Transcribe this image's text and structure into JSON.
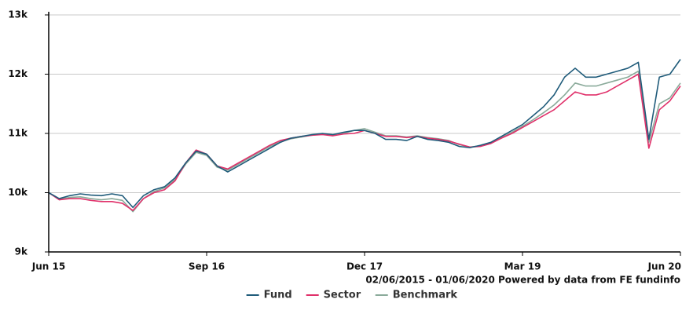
{
  "chart_data": {
    "type": "line",
    "x": [
      "2015-06",
      "2015-07",
      "2015-08",
      "2015-09",
      "2015-10",
      "2015-11",
      "2015-12",
      "2016-01",
      "2016-02",
      "2016-03",
      "2016-04",
      "2016-05",
      "2016-06",
      "2016-07",
      "2016-08",
      "2016-09",
      "2016-10",
      "2016-11",
      "2016-12",
      "2017-01",
      "2017-02",
      "2017-03",
      "2017-04",
      "2017-05",
      "2017-06",
      "2017-07",
      "2017-08",
      "2017-09",
      "2017-10",
      "2017-11",
      "2017-12",
      "2018-01",
      "2018-02",
      "2018-03",
      "2018-04",
      "2018-05",
      "2018-06",
      "2018-07",
      "2018-08",
      "2018-09",
      "2018-10",
      "2018-11",
      "2018-12",
      "2019-01",
      "2019-02",
      "2019-03",
      "2019-04",
      "2019-05",
      "2019-06",
      "2019-07",
      "2019-08",
      "2019-09",
      "2019-10",
      "2019-11",
      "2019-12",
      "2020-01",
      "2020-02",
      "2020-03",
      "2020-04",
      "2020-05",
      "2020-06"
    ],
    "series": [
      {
        "name": "Fund",
        "color": "#1f5b7a",
        "values": [
          10000,
          9900,
          9950,
          9980,
          9960,
          9950,
          9980,
          9950,
          9750,
          9950,
          10050,
          10100,
          10250,
          10500,
          10700,
          10650,
          10450,
          10350,
          10450,
          10550,
          10650,
          10750,
          10850,
          10920,
          10950,
          10980,
          11000,
          10980,
          11020,
          11050,
          11050,
          11000,
          10900,
          10900,
          10880,
          10950,
          10900,
          10880,
          10850,
          10780,
          10760,
          10800,
          10850,
          10950,
          11050,
          11150,
          11300,
          11450,
          11650,
          11950,
          12100,
          11950,
          11950,
          12000,
          12050,
          12100,
          12200,
          10900,
          11950,
          12000,
          12250
        ]
      },
      {
        "name": "Sector",
        "color": "#e0306a",
        "values": [
          10000,
          9880,
          9900,
          9900,
          9870,
          9850,
          9850,
          9820,
          9700,
          9900,
          10000,
          10050,
          10200,
          10500,
          10720,
          10650,
          10450,
          10400,
          10500,
          10600,
          10700,
          10800,
          10880,
          10920,
          10950,
          10970,
          10980,
          10960,
          10990,
          11000,
          11050,
          11000,
          10950,
          10950,
          10930,
          10950,
          10920,
          10900,
          10870,
          10820,
          10770,
          10780,
          10830,
          10920,
          11000,
          11100,
          11200,
          11300,
          11400,
          11550,
          11700,
          11650,
          11650,
          11700,
          11800,
          11900,
          12000,
          10750,
          11400,
          11550,
          11800
        ]
      },
      {
        "name": "Benchmark",
        "color": "#8aaa9a",
        "values": [
          10000,
          9890,
          9920,
          9930,
          9900,
          9880,
          9900,
          9870,
          9680,
          9900,
          10020,
          10080,
          10220,
          10480,
          10680,
          10630,
          10430,
          10380,
          10480,
          10580,
          10680,
          10780,
          10860,
          10910,
          10940,
          10970,
          10990,
          10970,
          11000,
          11050,
          11080,
          11020,
          10960,
          10960,
          10940,
          10960,
          10930,
          10910,
          10880,
          10810,
          10770,
          10790,
          10840,
          10930,
          11020,
          11120,
          11230,
          11350,
          11480,
          11650,
          11850,
          11800,
          11800,
          11850,
          11900,
          11950,
          12050,
          10850,
          11500,
          11600,
          11850
        ]
      }
    ],
    "xlim": [
      "2015-06",
      "2020-06"
    ],
    "xticks": [
      {
        "value": "2015-06",
        "label": "Jun 15"
      },
      {
        "value": "2016-09",
        "label": "Sep 16"
      },
      {
        "value": "2017-12",
        "label": "Dec 17"
      },
      {
        "value": "2019-03",
        "label": "Mar 19"
      },
      {
        "value": "2020-06",
        "label": "Jun 20"
      }
    ],
    "ylim": [
      9000,
      13000
    ],
    "yticks": [
      {
        "value": 9000,
        "label": "9k"
      },
      {
        "value": 10000,
        "label": "10k"
      },
      {
        "value": 11000,
        "label": "11k"
      },
      {
        "value": 12000,
        "label": "12k"
      },
      {
        "value": 13000,
        "label": "13k"
      }
    ],
    "grid": true,
    "source": "02/06/2015 - 01/06/2020 Powered by data from FE fundinfo",
    "legend": "bottom"
  }
}
